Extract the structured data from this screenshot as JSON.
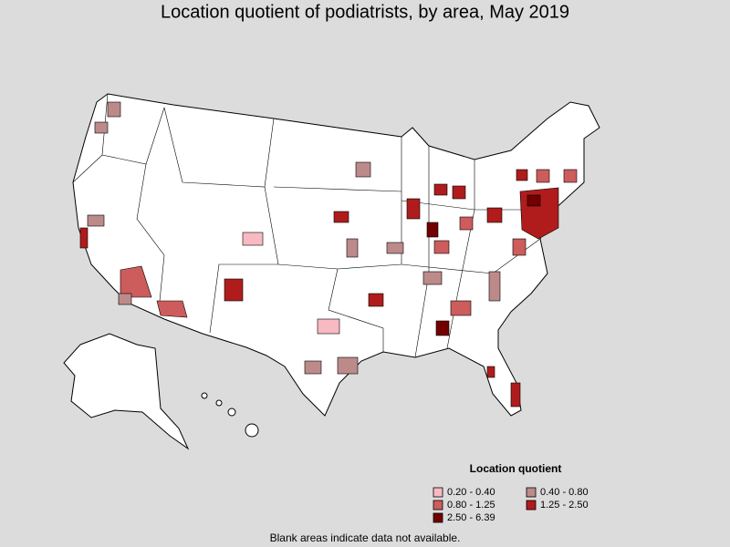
{
  "title": "Location quotient of podiatrists, by area, May 2019",
  "legend": {
    "title": "Location quotient",
    "items": [
      {
        "label": "0.20 - 0.40",
        "color": "#f7b9c2"
      },
      {
        "label": "0.40 - 0.80",
        "color": "#bd8a8a"
      },
      {
        "label": "0.80 - 1.25",
        "color": "#cd5c5c"
      },
      {
        "label": "1.25 - 2.50",
        "color": "#b01c1c"
      },
      {
        "label": "2.50 - 6.39",
        "color": "#720000"
      }
    ]
  },
  "footnote": "Blank areas indicate data not available."
}
